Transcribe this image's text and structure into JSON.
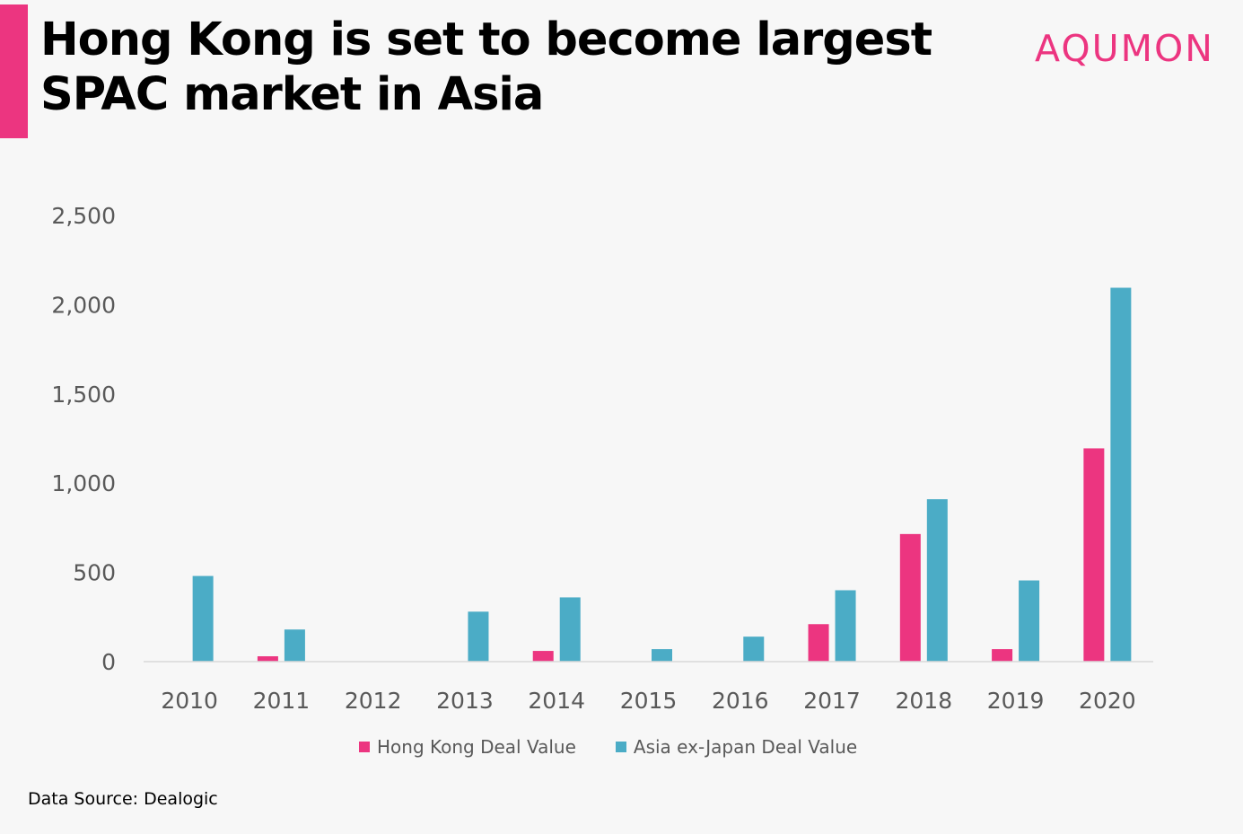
{
  "header": {
    "title": "Hong Kong is set to become largest SPAC market in Asia",
    "brand": "AQUMON",
    "accent_color": "#ec3580"
  },
  "footer": {
    "source": "Data Source: Dealogic"
  },
  "chart_data": {
    "type": "bar",
    "title": "",
    "xlabel": "",
    "ylabel": "",
    "categories": [
      "2010",
      "2011",
      "2012",
      "2013",
      "2014",
      "2015",
      "2016",
      "2017",
      "2018",
      "2019",
      "2020"
    ],
    "series": [
      {
        "name": "Hong Kong Deal Value",
        "color": "#ec3580",
        "values": [
          0,
          30,
          0,
          0,
          60,
          0,
          0,
          210,
          715,
          70,
          1195
        ]
      },
      {
        "name": "Asia ex-Japan Deal Value",
        "color": "#4bacc6",
        "values": [
          480,
          180,
          0,
          280,
          360,
          70,
          140,
          400,
          910,
          455,
          2095
        ]
      }
    ],
    "ylim": [
      0,
      2500
    ],
    "yticks": [
      0,
      500,
      1000,
      1500,
      2000,
      2500
    ],
    "ytick_labels": [
      "0",
      "500",
      "1,000",
      "1,500",
      "2,000",
      "2,500"
    ],
    "grid": false,
    "legend_position": "bottom"
  }
}
